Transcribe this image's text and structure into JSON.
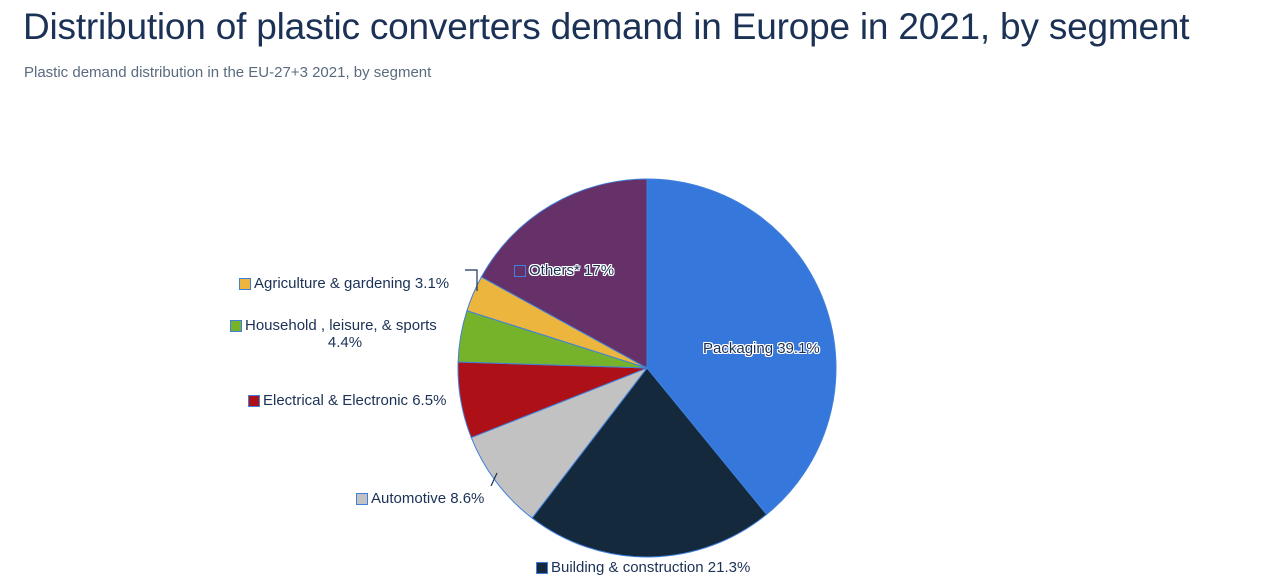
{
  "header": {
    "title": "Distribution of plastic converters demand in Europe in 2021, by segment",
    "subtitle": "Plastic demand distribution in the EU-27+3 2021, by segment"
  },
  "colors": {
    "title_text": "#1B3155",
    "subtitle_text": "#5A6B7E",
    "label_text": "#1B3155",
    "slice_border": "#4080DC",
    "background": "#FFFFFF"
  },
  "chart_data": {
    "type": "pie",
    "title": "Distribution of plastic converters demand in Europe in 2021, by segment",
    "subtitle": "Plastic demand distribution in the EU-27+3 2021, by segment",
    "unit": "%",
    "total": 100,
    "start_angle_deg": 0,
    "direction": "clockwise",
    "legend_position": "labels-around-pie",
    "slices": [
      {
        "key": "packaging",
        "name": "Packaging",
        "value": 39.1,
        "pct": "39.1%",
        "label": "Packaging 39.1%",
        "color": "#3577DB",
        "swatch": "none",
        "label_inside": true
      },
      {
        "key": "building",
        "name": "Building & construction",
        "value": 21.3,
        "pct": "21.3%",
        "label": "Building & construction 21.3%",
        "color": "#15293C",
        "swatch": "filled",
        "label_inside": false
      },
      {
        "key": "automotive",
        "name": "Automotive",
        "value": 8.6,
        "pct": "8.6%",
        "label": "Automotive 8.6%",
        "color": "#C2C2C2",
        "swatch": "filled",
        "label_inside": false
      },
      {
        "key": "electrical",
        "name": "Electrical & Electronic",
        "value": 6.5,
        "pct": "6.5%",
        "label": "Electrical & Electronic 6.5%",
        "color": "#AE1017",
        "swatch": "filled",
        "label_inside": false
      },
      {
        "key": "household",
        "name": "Household , leisure, & sports",
        "value": 4.4,
        "pct": "4.4%",
        "label": "Household , leisure, & sports 4.4%",
        "label_line1": "Household , leisure, & sports",
        "label_line2": "4.4%",
        "color": "#76B32B",
        "swatch": "filled",
        "label_inside": false
      },
      {
        "key": "agriculture",
        "name": "Agriculture & gardening",
        "value": 3.1,
        "pct": "3.1%",
        "label": "Agriculture & gardening 3.1%",
        "color": "#ECB53E",
        "swatch": "filled",
        "label_inside": false
      },
      {
        "key": "others",
        "name": "Others*",
        "value": 17.0,
        "pct": "17%",
        "label": "Others* 17%",
        "color": "#663069",
        "swatch": "outline",
        "label_inside": true
      }
    ]
  }
}
